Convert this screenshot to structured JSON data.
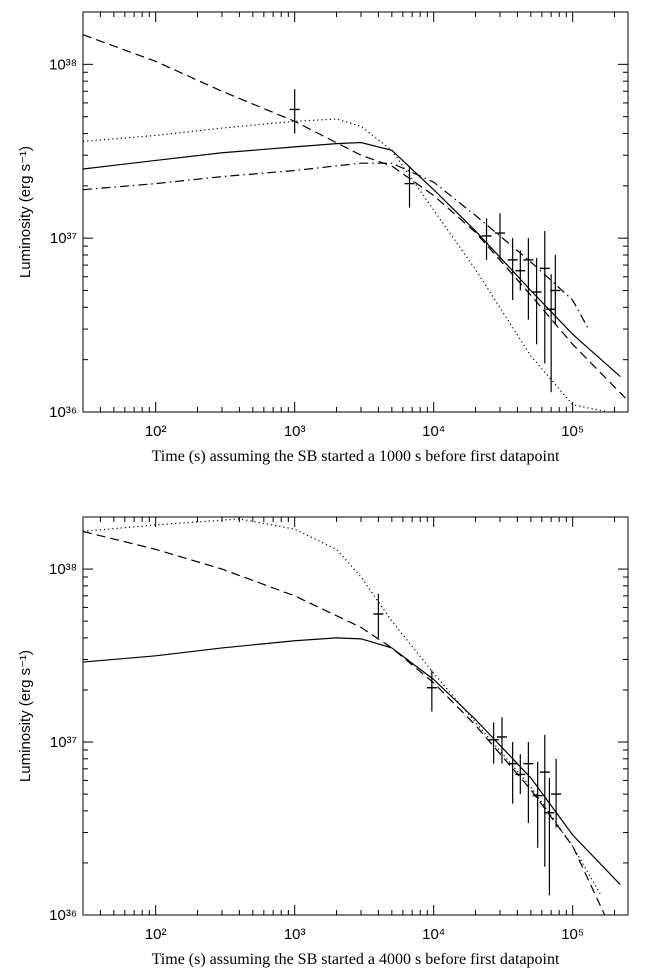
{
  "chart_data": [
    {
      "type": "line",
      "xscale": "log",
      "yscale": "log",
      "x_label": "Time (s) assuming the SB started a 1000 s before first datapoint",
      "y_label": "Luminosity (erg s⁻¹)",
      "xlim": [
        30,
        250000
      ],
      "ylim": [
        1e+36,
        2e+38
      ],
      "xticks": [
        {
          "value": 100,
          "label": "10²"
        },
        {
          "value": 1000,
          "label": "10³"
        },
        {
          "value": 10000,
          "label": "10⁴"
        },
        {
          "value": 100000,
          "label": "10⁵"
        }
      ],
      "yticks": [
        {
          "value": 1e+36,
          "label": "10³⁶"
        },
        {
          "value": 1e+37,
          "label": "10³⁷"
        },
        {
          "value": 1e+38,
          "label": "10³⁸"
        }
      ],
      "color": "#000000",
      "points": {
        "x": [
          1000,
          6700,
          24000,
          30000,
          37000,
          42000,
          48000,
          55000,
          63000,
          70000,
          75000
        ],
        "y": [
          5.5e+37,
          2.06e+37,
          1.03e+37,
          1.07e+37,
          7.5e+36,
          6.5e+36,
          7.5e+36,
          4.9e+36,
          6.7e+36,
          3.9e+36,
          5e+36
        ],
        "y_lower": [
          4e+37,
          1.5e+37,
          7.5e+36,
          7.5e+36,
          4.4e+36,
          5e+36,
          3.4e+36,
          2.45e+36,
          1.9e+36,
          1.3e+36,
          3.2e+36
        ],
        "y_upper": [
          7.2e+37,
          2.6e+37,
          1.3e+37,
          1.39e+37,
          1e+37,
          8.5e+36,
          1e+37,
          7.7e+36,
          1.1e+37,
          6.2e+36,
          8e+36
        ]
      },
      "series": [
        {
          "style": "solid",
          "x": [
            30,
            100,
            300,
            1000,
            2000,
            3000,
            5000,
            10000,
            20000,
            50000,
            100000,
            220000
          ],
          "values": [
            2.5e+37,
            2.8e+37,
            3.1e+37,
            3.35e+37,
            3.5e+37,
            3.55e+37,
            3.2e+37,
            1.9e+37,
            1.1e+37,
            5e+36,
            2.8e+36,
            1.6e+36
          ]
        },
        {
          "style": "dotted",
          "x": [
            30,
            100,
            300,
            1000,
            2000,
            3000,
            5000,
            10000,
            20000,
            50000,
            100000,
            180000
          ],
          "values": [
            3.6e+37,
            3.9e+37,
            4.3e+37,
            4.7e+37,
            4.85e+37,
            4.4e+37,
            3.2e+37,
            1.45e+37,
            6.6e+36,
            2.1e+36,
            1.1e+36,
            1e+36
          ]
        },
        {
          "style": "dashed",
          "x": [
            30,
            100,
            300,
            1000,
            3000,
            5000,
            10000,
            20000,
            50000,
            100000,
            240000
          ],
          "values": [
            1.48e+38,
            1.04e+38,
            7e+37,
            4.7e+37,
            3e+37,
            2.6e+37,
            1.76e+37,
            1.08e+37,
            4.7e+36,
            2.45e+36,
            1.2e+36
          ]
        },
        {
          "style": "dash-dot",
          "x": [
            30,
            100,
            300,
            1000,
            3000,
            5000,
            10000,
            20000,
            50000,
            100000,
            130000
          ],
          "values": [
            1.9e+37,
            2.06e+37,
            2.26e+37,
            2.45e+37,
            2.7e+37,
            2.7e+37,
            2.1e+37,
            1.35e+37,
            7.3e+36,
            4.4e+36,
            3e+36
          ]
        }
      ]
    },
    {
      "type": "line",
      "xscale": "log",
      "yscale": "log",
      "x_label": "Time (s) assuming the SB started a 4000 s before first datapoint",
      "y_label": "Luminosity (erg s⁻¹)",
      "xlim": [
        30,
        250000
      ],
      "ylim": [
        1e+36,
        2e+38
      ],
      "xticks": [
        {
          "value": 100,
          "label": "10²"
        },
        {
          "value": 1000,
          "label": "10³"
        },
        {
          "value": 10000,
          "label": "10⁴"
        },
        {
          "value": 100000,
          "label": "10⁵"
        }
      ],
      "yticks": [
        {
          "value": 1e+36,
          "label": "10³⁶"
        },
        {
          "value": 1e+37,
          "label": "10³⁷"
        },
        {
          "value": 1e+38,
          "label": "10³⁸"
        }
      ],
      "color": "#000000",
      "points": {
        "x": [
          4000,
          9700,
          27000,
          31000,
          37000,
          42000,
          48000,
          56000,
          63000,
          68000,
          76000
        ],
        "y": [
          5.5e+37,
          2.06e+37,
          1.03e+37,
          1.07e+37,
          7.5e+36,
          6.5e+36,
          7.5e+36,
          4.9e+36,
          6.7e+36,
          3.9e+36,
          5e+36
        ],
        "y_lower": [
          4e+37,
          1.5e+37,
          7.5e+36,
          7.5e+36,
          4.4e+36,
          5e+36,
          3.4e+36,
          2.45e+36,
          1.9e+36,
          1.3e+36,
          3.2e+36
        ],
        "y_upper": [
          7.2e+37,
          2.6e+37,
          1.3e+37,
          1.39e+37,
          1e+37,
          8.5e+36,
          1e+37,
          7.7e+36,
          1.1e+37,
          6.2e+36,
          8e+36
        ]
      },
      "series": [
        {
          "style": "solid",
          "x": [
            30,
            100,
            300,
            1000,
            2000,
            3000,
            5000,
            10000,
            20000,
            50000,
            100000,
            220000
          ],
          "values": [
            2.9e+37,
            3.15e+37,
            3.5e+37,
            3.85e+37,
            4e+37,
            3.95e+37,
            3.5e+37,
            2.3e+37,
            1.35e+37,
            6.2e+36,
            2.9e+36,
            1.5e+36
          ]
        },
        {
          "style": "dotted",
          "x": [
            30,
            100,
            400,
            1000,
            2000,
            3000,
            5000,
            10000,
            20000,
            50000,
            100000,
            160000
          ],
          "values": [
            1.65e+38,
            1.8e+38,
            1.95e+38,
            1.7e+38,
            1.3e+38,
            9e+37,
            5e+37,
            2.5e+37,
            1.3e+37,
            5.5e+36,
            2.5e+36,
            1.3e+36
          ]
        },
        {
          "style": "dashed",
          "x": [
            30,
            100,
            300,
            1000,
            3000,
            5000,
            10000,
            20000,
            50000,
            100000,
            170000
          ],
          "values": [
            1.65e+38,
            1.3e+38,
            1e+38,
            7e+37,
            4.6e+37,
            3.5e+37,
            2.2e+37,
            1.25e+37,
            5.3e+36,
            2.5e+36,
            1e+36
          ]
        }
      ]
    }
  ]
}
